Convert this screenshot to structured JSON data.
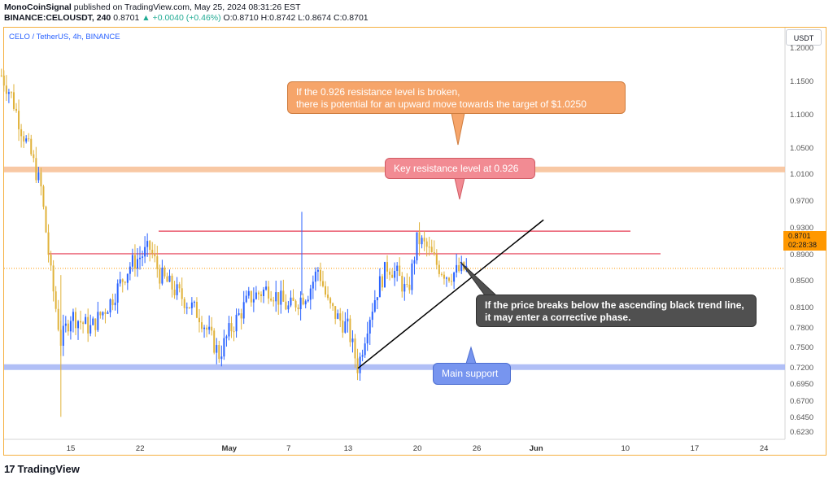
{
  "header": {
    "author": "MonoCoinSignal",
    "published": "published on TradingView.com, May 25, 2024 08:31:26 EST",
    "symbol": "BINANCE:CELOUSDT, 240",
    "last": "0.8701",
    "change": "▲ +0.0040 (+0.46%)",
    "ohlc_o": "O:0.8710",
    "ohlc_h": "H:0.8742",
    "ohlc_l": "L:0.8674",
    "ohlc_c": "C:0.8701"
  },
  "legend": "CELO / TetherUS, 4h, BINANCE",
  "currency_button": "USDT",
  "price_tag": {
    "price": "0.8701",
    "countdown": "02:28:38"
  },
  "callouts": {
    "orange_line1": "If the 0.926 resistance level is broken,",
    "orange_line2": "there is potential for an upward move towards the target of $1.0250",
    "red": "Key resistance level at 0.926",
    "dark_line1": "If the price breaks below the ascending black trend line,",
    "dark_line2": "it may enter a corrective phase.",
    "blue": "Main support"
  },
  "branding": {
    "mark": "17",
    "name": "TradingView"
  },
  "colors": {
    "candle_up": "#2962ff",
    "candle_down": "#e0b23a",
    "resistance_line": "#e53950",
    "target_zone": "#f7c29a",
    "support_zone": "#a9b8f5",
    "trend_line": "#000000",
    "current_price": "#ff9800"
  },
  "chart_data": {
    "type": "candlestick",
    "title": "CELO / TetherUS, 4h, BINANCE",
    "y_axis": {
      "labels": [
        "1.2000",
        "1.1500",
        "1.1000",
        "1.0500",
        "1.0100",
        "0.9700",
        "0.9300",
        "0.8900",
        "0.8500",
        "0.8100",
        "0.7800",
        "0.7500",
        "0.7200",
        "0.6950",
        "0.6700",
        "0.6450",
        "0.6230"
      ],
      "ylim": [
        0.615,
        1.205
      ]
    },
    "x_axis": {
      "labels": [
        "15",
        "22",
        "May",
        "7",
        "13",
        "20",
        "26",
        "Jun",
        "10",
        "17",
        "24"
      ],
      "bold_labels": [
        "May",
        "Jun"
      ]
    },
    "levels": {
      "resistance_key": 0.926,
      "resistance_lower": 0.892,
      "target_zone": [
        1.015,
        1.023
      ],
      "support_zone": [
        0.718,
        0.726
      ],
      "current_price": 0.8701
    },
    "trend_line": {
      "from": {
        "date": "May 14",
        "price": 0.72
      },
      "to": {
        "date": "Jun 1",
        "price": 0.943
      }
    },
    "price_path": [
      {
        "date": "Apr 8",
        "price": 1.16
      },
      {
        "date": "Apr 9",
        "price": 1.13
      },
      {
        "date": "Apr 10",
        "price": 1.08
      },
      {
        "date": "Apr 11",
        "price": 1.04
      },
      {
        "date": "Apr 12",
        "price": 0.99
      },
      {
        "date": "Apr 13",
        "price": 0.86
      },
      {
        "date": "Apr 14",
        "price": 0.76
      },
      {
        "date": "Apr 15",
        "price": 0.8
      },
      {
        "date": "Apr 17",
        "price": 0.78
      },
      {
        "date": "Apr 19",
        "price": 0.82
      },
      {
        "date": "Apr 21",
        "price": 0.875
      },
      {
        "date": "Apr 23",
        "price": 0.9
      },
      {
        "date": "Apr 24",
        "price": 0.86
      },
      {
        "date": "Apr 26",
        "price": 0.83
      },
      {
        "date": "Apr 28",
        "price": 0.8
      },
      {
        "date": "Apr 30",
        "price": 0.74
      },
      {
        "date": "May 1",
        "price": 0.775
      },
      {
        "date": "May 3",
        "price": 0.825
      },
      {
        "date": "May 5",
        "price": 0.84
      },
      {
        "date": "May 7",
        "price": 0.81
      },
      {
        "date": "May 9",
        "price": 0.835
      },
      {
        "date": "May 10",
        "price": 0.87
      },
      {
        "date": "May 11",
        "price": 0.815
      },
      {
        "date": "May 12",
        "price": 0.795
      },
      {
        "date": "May 13",
        "price": 0.78
      },
      {
        "date": "May 14",
        "price": 0.72
      },
      {
        "date": "May 15",
        "price": 0.79
      },
      {
        "date": "May 16",
        "price": 0.84
      },
      {
        "date": "May 17",
        "price": 0.875
      },
      {
        "date": "May 18",
        "price": 0.86
      },
      {
        "date": "May 19",
        "price": 0.83
      },
      {
        "date": "May 20",
        "price": 0.915
      },
      {
        "date": "May 21",
        "price": 0.9
      },
      {
        "date": "May 22",
        "price": 0.875
      },
      {
        "date": "May 23",
        "price": 0.86
      },
      {
        "date": "May 24",
        "price": 0.865
      },
      {
        "date": "May 25",
        "price": 0.87
      }
    ]
  }
}
